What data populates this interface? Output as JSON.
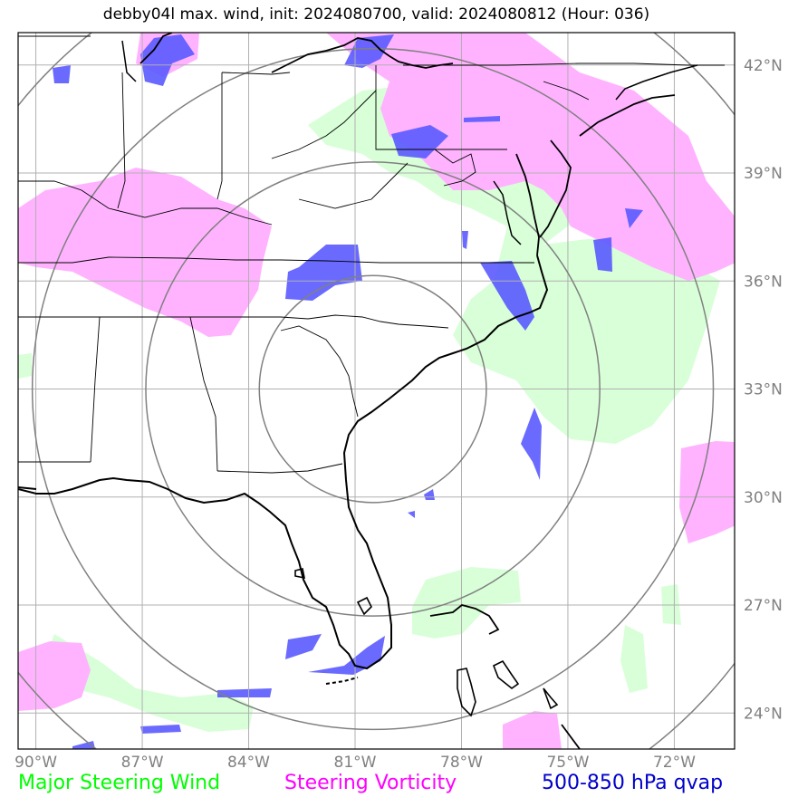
{
  "title": "debby04l max. wind, init: 2024080700, valid: 2024080812 (Hour: 036)",
  "map": {
    "lon_min": -90.5,
    "lon_max": -70.3,
    "lat_min": 23.0,
    "lat_max": 42.9,
    "grid_lons": [
      -90,
      -87,
      -84,
      -81,
      -78,
      -75,
      -72
    ],
    "grid_lats": [
      24,
      27,
      30,
      33,
      36,
      39,
      42
    ],
    "lon_labels": [
      "90°W",
      "87°W",
      "84°W",
      "81°W",
      "78°W",
      "75°W",
      "72°W"
    ],
    "lat_labels": [
      "24°N",
      "27°N",
      "30°N",
      "33°N",
      "36°N",
      "39°N",
      "42°N"
    ],
    "range_rings": {
      "center_lon": -80.5,
      "center_lat": 33.0,
      "radii_deg": [
        3.2,
        6.4,
        9.6,
        12.8
      ]
    },
    "colors": {
      "wind": "#d8ffd8",
      "vorticity": "#ffb3ff",
      "qvap": "#5a5aff",
      "grid": "#b0b0b0",
      "ring": "#808080",
      "coast": "#000000"
    }
  },
  "legend": {
    "wind": "Major Steering Wind",
    "vorticity": "Steering Vorticity",
    "qvap": "500-850 hPa qvap"
  }
}
